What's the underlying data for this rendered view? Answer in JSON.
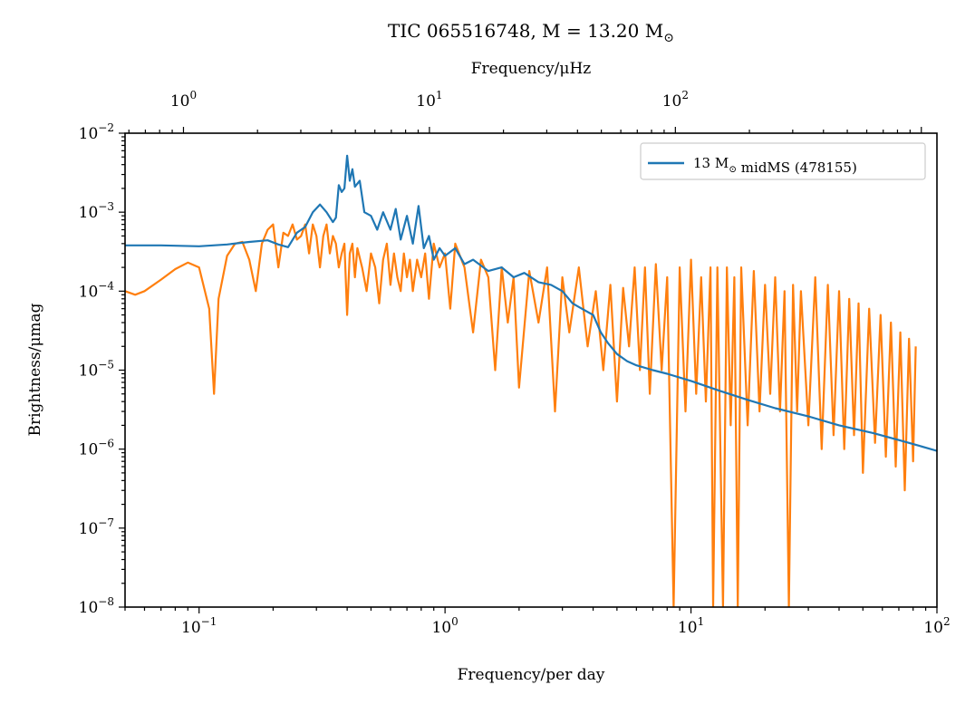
{
  "chart_data": {
    "type": "line",
    "title": "TIC 065516748, M = 13.20 M⊙",
    "xlabel": "Frequency/per day",
    "ylabel": "Brightness/μmag",
    "x2label": "Frequency/μHz",
    "xscale": "log",
    "yscale": "log",
    "xlim": [
      0.05,
      100
    ],
    "ylim": [
      1e-08,
      0.01
    ],
    "x2lim": [
      0.5787,
      1157.4
    ],
    "grid": false,
    "legend_position": "top-right",
    "x_ticks": [
      {
        "value": 0.1,
        "base": "10",
        "exp": "−1"
      },
      {
        "value": 1,
        "base": "10",
        "exp": "0"
      },
      {
        "value": 10,
        "base": "10",
        "exp": "1"
      },
      {
        "value": 100,
        "base": "10",
        "exp": "2"
      }
    ],
    "x2_ticks": [
      {
        "value": 1,
        "base": "10",
        "exp": "0"
      },
      {
        "value": 10,
        "base": "10",
        "exp": "1"
      },
      {
        "value": 100,
        "base": "10",
        "exp": "2"
      }
    ],
    "y_ticks": [
      {
        "value": 1e-08,
        "base": "10",
        "exp": "−8"
      },
      {
        "value": 1e-07,
        "base": "10",
        "exp": "−7"
      },
      {
        "value": 1e-06,
        "base": "10",
        "exp": "−6"
      },
      {
        "value": 1e-05,
        "base": "10",
        "exp": "−5"
      },
      {
        "value": 0.0001,
        "base": "10",
        "exp": "−4"
      },
      {
        "value": 0.001,
        "base": "10",
        "exp": "−3"
      },
      {
        "value": 0.01,
        "base": "10",
        "exp": "−2"
      }
    ],
    "series": [
      {
        "name": "13 M⊙ midMS (478155)",
        "color": "#1f77b4",
        "in_legend": true,
        "x": [
          0.05,
          0.07,
          0.1,
          0.13,
          0.16,
          0.19,
          0.21,
          0.23,
          0.25,
          0.27,
          0.29,
          0.31,
          0.33,
          0.35,
          0.36,
          0.37,
          0.38,
          0.39,
          0.4,
          0.41,
          0.42,
          0.43,
          0.45,
          0.47,
          0.5,
          0.53,
          0.56,
          0.6,
          0.63,
          0.66,
          0.7,
          0.74,
          0.78,
          0.82,
          0.86,
          0.9,
          0.95,
          1.0,
          1.1,
          1.2,
          1.3,
          1.5,
          1.7,
          1.9,
          2.1,
          2.4,
          2.7,
          3.0,
          3.3,
          3.6,
          4.0,
          4.3,
          4.6,
          5.0,
          5.5,
          6.0,
          7.0,
          8.0,
          10,
          13,
          17,
          22,
          30,
          40,
          55,
          70,
          85,
          100
        ],
        "y": [
          0.00038,
          0.00038,
          0.00037,
          0.00039,
          0.00042,
          0.00044,
          0.00039,
          0.00036,
          0.00055,
          0.00065,
          0.001,
          0.00125,
          0.001,
          0.00075,
          0.00085,
          0.0022,
          0.0018,
          0.002,
          0.0052,
          0.0025,
          0.0035,
          0.0021,
          0.0025,
          0.001,
          0.0009,
          0.0006,
          0.001,
          0.0006,
          0.0011,
          0.00045,
          0.0009,
          0.0004,
          0.0012,
          0.00035,
          0.0005,
          0.00025,
          0.00035,
          0.00028,
          0.00035,
          0.00022,
          0.00025,
          0.00018,
          0.0002,
          0.00015,
          0.00017,
          0.00013,
          0.00012,
          0.0001,
          7e-05,
          6e-05,
          5e-05,
          3e-05,
          2.2e-05,
          1.6e-05,
          1.3e-05,
          1.15e-05,
          1e-05,
          9e-06,
          7.3e-06,
          5.5e-06,
          4.2e-06,
          3.3e-06,
          2.6e-06,
          2e-06,
          1.6e-06,
          1.3e-06,
          1.1e-06,
          9.5e-07
        ]
      },
      {
        "name": "",
        "color": "#ff7f0e",
        "in_legend": false,
        "x": [
          0.05,
          0.055,
          0.06,
          0.07,
          0.08,
          0.09,
          0.1,
          0.11,
          0.115,
          0.12,
          0.13,
          0.14,
          0.15,
          0.16,
          0.17,
          0.18,
          0.19,
          0.2,
          0.21,
          0.22,
          0.23,
          0.24,
          0.25,
          0.26,
          0.27,
          0.28,
          0.29,
          0.3,
          0.31,
          0.32,
          0.33,
          0.34,
          0.35,
          0.36,
          0.37,
          0.38,
          0.39,
          0.4,
          0.41,
          0.42,
          0.43,
          0.44,
          0.46,
          0.48,
          0.5,
          0.52,
          0.54,
          0.56,
          0.58,
          0.6,
          0.62,
          0.64,
          0.66,
          0.68,
          0.7,
          0.72,
          0.74,
          0.77,
          0.8,
          0.83,
          0.86,
          0.9,
          0.95,
          1.0,
          1.05,
          1.1,
          1.2,
          1.3,
          1.4,
          1.5,
          1.6,
          1.7,
          1.8,
          1.9,
          2.0,
          2.2,
          2.4,
          2.6,
          2.8,
          3.0,
          3.2,
          3.5,
          3.8,
          4.1,
          4.4,
          4.7,
          5.0,
          5.3,
          5.6,
          5.9,
          6.2,
          6.5,
          6.8,
          7.2,
          7.6,
          8.0,
          8.5,
          9.0,
          9.5,
          10.0,
          10.5,
          11.0,
          11.5,
          12.0,
          12.3,
          12.8,
          13.5,
          14.0,
          14.5,
          15.0,
          15.5,
          16.0,
          17.0,
          18.0,
          19.0,
          20.0,
          21.0,
          22.0,
          23.0,
          24.0,
          25.0,
          26.0,
          27.0,
          28.0,
          30.0,
          32.0,
          34.0,
          36.0,
          38.0,
          40.0,
          42.0,
          44.0,
          46.0,
          48.0,
          50.0,
          53.0,
          56.0,
          59.0,
          62.0,
          65.0,
          68.0,
          71.0,
          74.0,
          77.0,
          80.0,
          82.0
        ],
        "y": [
          0.0001,
          9e-05,
          0.0001,
          0.00014,
          0.00019,
          0.00023,
          0.0002,
          6e-05,
          5e-06,
          8e-05,
          0.00028,
          0.0004,
          0.00042,
          0.00025,
          0.0001,
          0.0004,
          0.0006,
          0.0007,
          0.0002,
          0.00055,
          0.0005,
          0.0007,
          0.00045,
          0.0005,
          0.0007,
          0.0003,
          0.0007,
          0.0005,
          0.0002,
          0.0005,
          0.0007,
          0.0003,
          0.0005,
          0.0004,
          0.0002,
          0.0003,
          0.0004,
          5e-05,
          0.0003,
          0.0004,
          0.00015,
          0.00035,
          0.0002,
          0.0001,
          0.0003,
          0.0002,
          7e-05,
          0.00025,
          0.0004,
          0.00012,
          0.0003,
          0.00015,
          0.0001,
          0.0003,
          0.00015,
          0.00025,
          0.0001,
          0.00025,
          0.00015,
          0.0003,
          8e-05,
          0.0004,
          0.0002,
          0.0003,
          6e-05,
          0.0004,
          0.0002,
          3e-05,
          0.00025,
          0.00015,
          1e-05,
          0.0002,
          4e-05,
          0.00015,
          6e-06,
          0.00018,
          4e-05,
          0.0002,
          3e-06,
          0.00015,
          3e-05,
          0.0002,
          2e-05,
          0.0001,
          1e-05,
          0.00012,
          4e-06,
          0.00011,
          2e-05,
          0.0002,
          1e-05,
          0.0002,
          5e-06,
          0.00022,
          1e-05,
          0.00015,
          1e-08,
          0.0002,
          3e-06,
          0.00025,
          5e-06,
          0.00015,
          4e-06,
          0.0002,
          1e-08,
          0.0002,
          1e-08,
          0.0002,
          2e-06,
          0.00015,
          1e-08,
          0.0002,
          2e-06,
          0.00018,
          3e-06,
          0.00012,
          5e-06,
          0.00015,
          3e-06,
          0.0001,
          1e-08,
          0.00012,
          3e-06,
          0.0001,
          2e-06,
          0.00015,
          1e-06,
          0.00012,
          1.5e-06,
          0.0001,
          1e-06,
          8e-05,
          1.5e-06,
          7e-05,
          5e-07,
          6e-05,
          1.2e-06,
          5e-05,
          8e-07,
          4e-05,
          6e-07,
          3e-05,
          3e-07,
          2.5e-05,
          7e-07,
          2e-05
        ]
      }
    ]
  }
}
